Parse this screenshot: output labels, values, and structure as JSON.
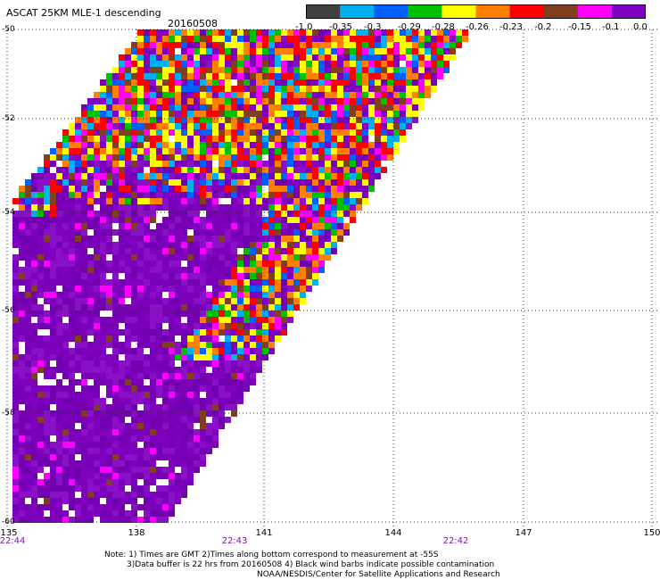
{
  "header": {
    "title": "ASCAT 25KM MLE-1 descending",
    "date": "20160508"
  },
  "legend": {
    "ticks": [
      "-1.0",
      "-0.35",
      "-0.3",
      "-0.29",
      "-0.28",
      "-0.26",
      "-0.23",
      "-0.2",
      "-0.15",
      "-0.1",
      "0.0"
    ],
    "colors": [
      "#404040",
      "#00b0f0",
      "#0060ff",
      "#00c000",
      "#ffff00",
      "#ff8000",
      "#ff0000",
      "#804020",
      "#ff00ff",
      "#8000c0"
    ],
    "color_names": [
      "dark-gray",
      "cyan",
      "blue",
      "green",
      "yellow",
      "orange",
      "red",
      "brown",
      "magenta",
      "purple"
    ]
  },
  "axes": {
    "lat_labels": [
      "-50",
      "-52",
      "-54",
      "-56",
      "-58",
      "-60"
    ],
    "lon_labels": [
      "135",
      "138",
      "141",
      "144",
      "147",
      "150"
    ],
    "time_labels": [
      "22:44",
      "22:43",
      "22:42"
    ],
    "lat_range": [
      -60,
      -50
    ],
    "lon_range": [
      135,
      150
    ],
    "grid": "dotted"
  },
  "footer": {
    "line1": "Note: 1) Times are GMT 2)Times along bottom correspond to measurement at -55S",
    "line2": "3)Data buffer is 22 hrs from 20160508 4) Black wind barbs indicate possible contamination",
    "line3": "NOAA/NESDIS/Center for Satellite Applications and Research"
  },
  "colors": {
    "background": "#ffffff",
    "swath_base": "#8000c0",
    "time_label": "#7a1aa0"
  }
}
